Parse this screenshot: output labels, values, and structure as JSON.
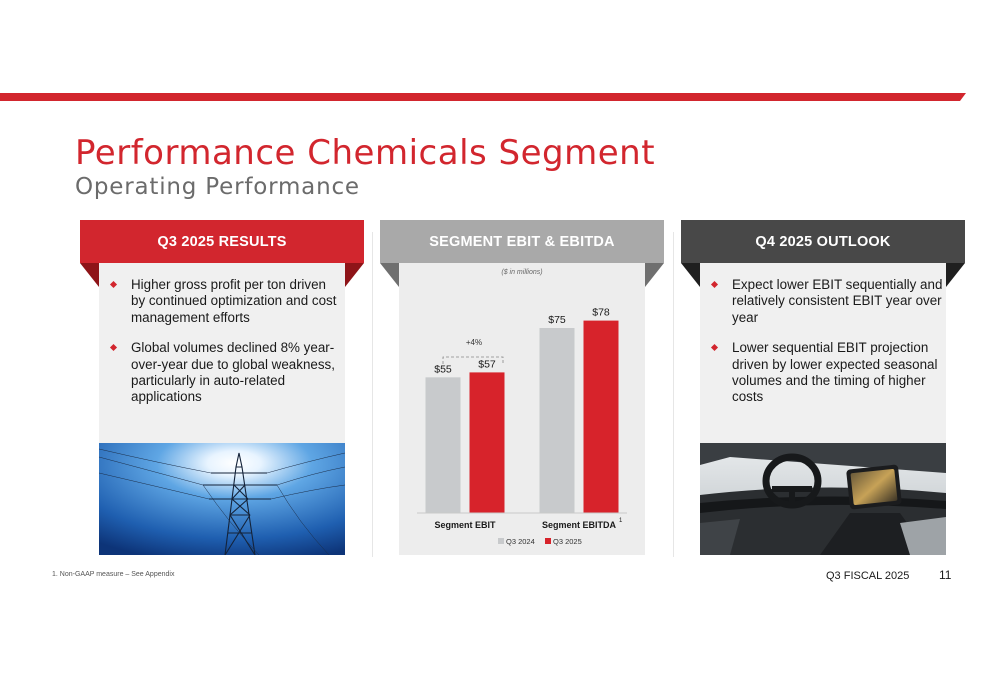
{
  "slide": {
    "title": "Performance Chemicals Segment",
    "subtitle": "Operating Performance",
    "footnote": "1. Non-GAAP measure – See Appendix",
    "fiscal_label": "Q3 FISCAL 2025",
    "page_number": "11",
    "accent_color": "#d2262e"
  },
  "results": {
    "header": "Q3 2025 RESULTS",
    "bullets": [
      "Higher gross profit per ton driven by continued optimization and cost management efforts",
      "Global volumes declined 8% year-over-year due to global weakness, particularly in auto-related applications"
    ],
    "image_icon": "power-transmission-tower-photo"
  },
  "chart_panel": {
    "header": "SEGMENT EBIT & EBITDA"
  },
  "outlook": {
    "header": "Q4 2025 OUTLOOK",
    "bullets": [
      "Expect lower EBIT sequentially and relatively consistent EBIT year over year",
      "Lower sequential EBIT projection driven by lower expected seasonal volumes and the timing of higher costs"
    ],
    "image_icon": "car-interior-dashboard-photo"
  },
  "chart_data": {
    "type": "bar",
    "unit_note": "($ in millions)",
    "categories": [
      "Segment EBIT",
      "Segment EBITDA"
    ],
    "category_superscripts": [
      "",
      "1"
    ],
    "series": [
      {
        "name": "Q3 2024",
        "values": [
          55,
          75
        ],
        "labels": [
          "$55",
          "$75"
        ],
        "color": "#c8cacc"
      },
      {
        "name": "Q3 2025",
        "values": [
          57,
          78
        ],
        "labels": [
          "$57",
          "$78"
        ],
        "color": "#d7232b"
      }
    ],
    "annotation": "+4%",
    "ylim": [
      0,
      90
    ],
    "grid": false,
    "legend_position": "bottom"
  }
}
